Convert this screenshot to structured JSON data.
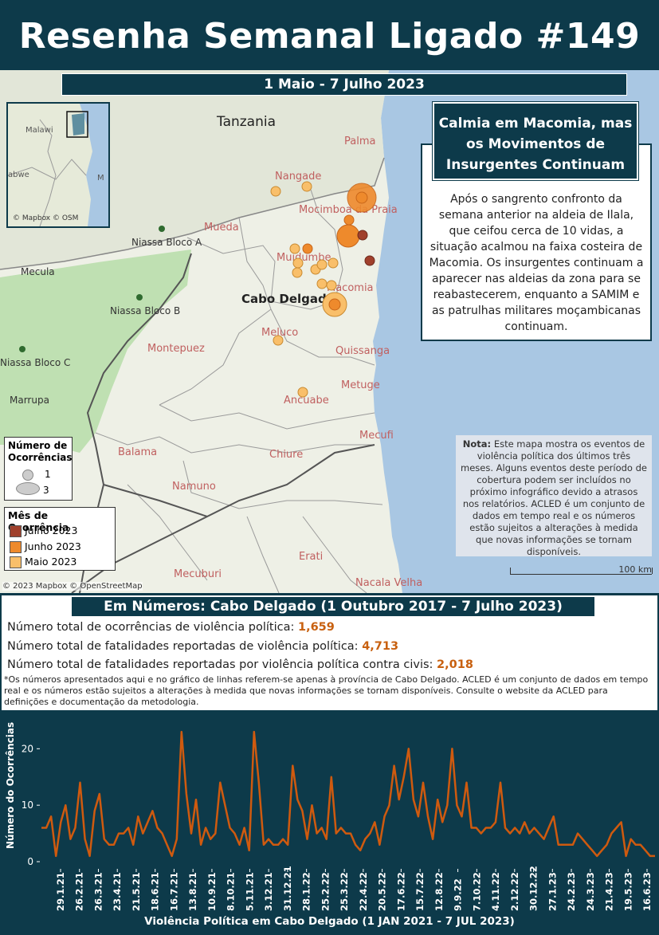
{
  "header": {
    "title": "Resenha Semanal Ligado #149"
  },
  "map": {
    "date_range": "1 Maio - 7 Julho 2023",
    "country_label": "Tanzania",
    "province_label": "Cabo Delgado",
    "place_labels": [
      "Palma",
      "Nangade",
      "Mocimboa da Praia",
      "Mueda",
      "Muidumbe",
      "Macomia",
      "Meluco",
      "Quissanga",
      "Metuge",
      "Ancuabe",
      "Mecufi",
      "Chiure",
      "Balama",
      "Namuno",
      "Montepuez",
      "Erati",
      "Mecuburi",
      "Nacala Velha",
      "Mecula",
      "Marrupa"
    ],
    "reserve_labels": [
      "Niassa Bloco A",
      "Niassa Bloco B",
      "Niassa Bloco C"
    ],
    "inset": {
      "labels": [
        "Malawi",
        "abwe",
        "M"
      ],
      "attribution": "© Mapbox © OSM"
    },
    "attribution": "© 2023 Mapbox © OpenStreetMap",
    "scale_label": "100 km",
    "colors": {
      "julho": "#a0402c",
      "junho": "#ee8a2c",
      "maio": "#f9bf6a",
      "water": "#a9c7e3",
      "reserve": "#bfe0b2",
      "land": "#eef0e6"
    }
  },
  "callout": {
    "title": "Calmia em Macomia, mas os Movimentos de Insurgentes Continuam",
    "body": "Após o sangrento confronto da semana anterior na aldeia de Ilala, que ceifou cerca de 10 vidas, a situação acalmou na faixa costeira de Macomia. Os insurgentes continuam a aparecer nas aldeias da zona para se reabastecerem, enquanto a SAMIM e as patrulhas militares moçambicanas continuam."
  },
  "note": {
    "label": "Nota:",
    "text": "Este mapa mostra os eventos de violência política dos últimos três meses. Alguns eventos deste período de cobertura podem ser incluídos no próximo infográfico devido a atrasos nos relatórios. ACLED é um conjunto de dados em tempo real e os números estão sujeitos a alterações à medida que novas informações se tornam disponíveis."
  },
  "legend_size": {
    "title": "Número de Ocorrências",
    "items": [
      "1",
      "3"
    ]
  },
  "legend_month": {
    "title": "Mês de Ocorrência",
    "items": [
      "Julho 2023",
      "Junho 2023",
      "Maio 2023"
    ]
  },
  "numbers": {
    "title": "Em Números: Cabo Delgado (1 Outubro 2017 - 7 Julho 2023)",
    "stats": [
      {
        "label": "Número total de ocorrências de violência política: ",
        "value": "1,659"
      },
      {
        "label": "Número total de fatalidades reportadas de violência política: ",
        "value": "4,713"
      },
      {
        "label": "Número total de fatalidades reportadas por violência política contra civis: ",
        "value": "2,018"
      }
    ],
    "footnote": "*Os números apresentados aqui e no gráfico de linhas referem-se apenas à província de Cabo Delgado. ACLED é um conjunto de dados em tempo real e os números estão sujeitos a alterações à medida que novas informações se tornam disponíveis. Consulte o website da ACLED para definições e documentação da metodologia."
  },
  "chart_data": {
    "type": "line",
    "title": "Violência Política em Cabo Delgado (1 JAN 2021 - 7 JUL 2023)",
    "ylabel": "Número do Ocorrências",
    "ylim": [
      0,
      24
    ],
    "yticks": [
      0,
      10,
      20
    ],
    "tick_labels": [
      "29.1.21",
      "26.2.21",
      "26.3.21",
      "23.4.21",
      "21.5.21",
      "18.6.21",
      "16.7.21",
      "13.8.21",
      "10.9.21",
      "8.10.21",
      "5.11.21",
      "3.12.21",
      "31.12.21",
      "28.1.22",
      "25.2.22",
      "25.3.22",
      "22.4.22",
      "20.5.22",
      "17.6.22",
      "15.7.22",
      "12.8.22",
      "9.9.22",
      "7.10.22",
      "4.11.22",
      "2.12.22",
      "30.12.22",
      "27.1.23",
      "24.2.23",
      "24.3.23",
      "21.4.23",
      "19.5.23",
      "16.6.23"
    ],
    "line_color": "#cf5a0f",
    "series": [
      {
        "values": [
          6,
          6,
          8,
          1,
          7,
          10,
          4,
          6,
          14,
          4,
          1,
          9,
          12,
          4,
          3,
          3,
          5,
          5,
          6,
          3,
          8,
          5,
          7,
          9,
          6,
          5,
          3,
          1,
          4,
          23,
          12,
          5,
          11,
          3,
          6,
          4,
          5,
          14,
          10,
          6,
          5,
          3,
          6,
          2,
          23,
          14,
          3,
          4,
          3,
          3,
          4,
          3,
          17,
          11,
          9,
          4,
          10,
          5,
          6,
          4,
          15,
          5,
          6,
          5,
          5,
          3,
          2,
          4,
          5,
          7,
          3,
          8,
          10,
          17,
          11,
          15,
          20,
          11,
          8,
          14,
          8,
          4,
          11,
          7,
          10,
          20,
          10,
          8,
          14,
          6,
          6,
          5,
          6,
          6,
          7,
          14,
          6,
          5,
          6,
          5,
          7,
          5,
          6,
          5,
          4,
          6,
          8,
          3,
          3,
          3,
          3,
          5,
          4,
          3,
          2,
          1,
          2,
          3,
          5,
          6,
          7,
          1,
          4,
          3,
          3,
          2,
          1,
          1
        ]
      }
    ]
  }
}
